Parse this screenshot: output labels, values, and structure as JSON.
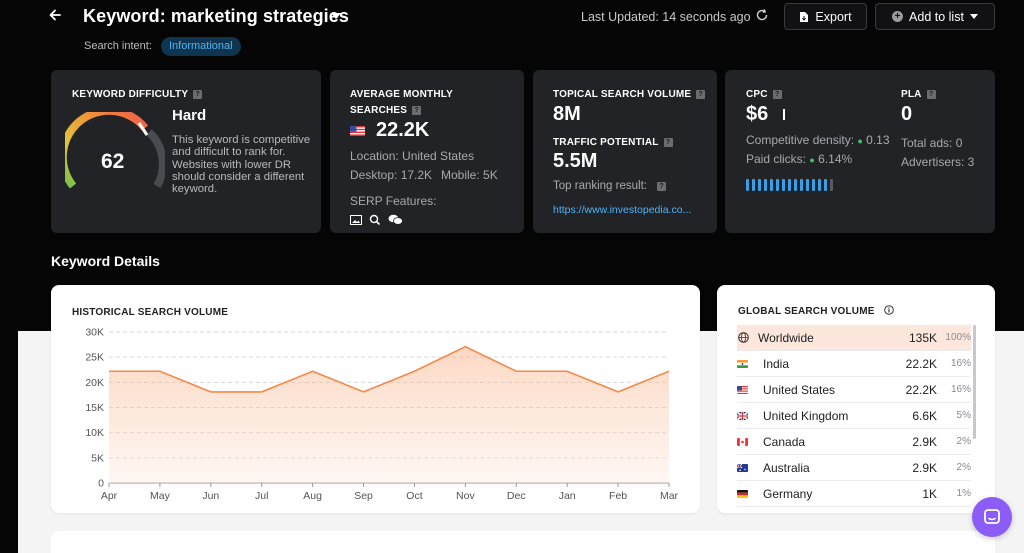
{
  "header": {
    "title": "Keyword: marketing strategies",
    "last_updated": "Last Updated: 14 seconds ago",
    "export_label": "Export",
    "add_to_list_label": "Add to list",
    "intent_label": "Search intent:",
    "intent_value": "Informational"
  },
  "keyword_difficulty": {
    "label": "KEYWORD DIFFICULTY",
    "value": 62,
    "rating": "Hard",
    "description": "This keyword is competitive and difficult to rank for. Websites with lower DR should consider a different keyword."
  },
  "monthly_searches": {
    "label_line1": "AVERAGE MONTHLY",
    "label_line2": "SEARCHES",
    "value": "22.2K",
    "location": "Location: United States",
    "desktop": "Desktop: 17.2K",
    "mobile": "Mobile: 5K",
    "serp_features_label": "SERP Features:"
  },
  "topical": {
    "label": "TOPICAL SEARCH VOLUME",
    "value": "8M",
    "traffic_label": "TRAFFIC POTENTIAL",
    "traffic_value": "5.5M",
    "top_result_label": "Top ranking result:",
    "top_result_url": "https://www.investopedia.co..."
  },
  "cpc": {
    "label": "CPC",
    "value": "$6",
    "density_label": "Competitive density:",
    "density_value": "0.13",
    "paid_label": "Paid clicks:",
    "paid_value": "6.14%",
    "density_level": 0.9
  },
  "pla": {
    "label": "PLA",
    "value": "0",
    "total_ads": "Total ads: 0",
    "advertisers": "Advertisers: 3"
  },
  "section_title": "Keyword Details",
  "historical": {
    "title": "HISTORICAL SEARCH VOLUME"
  },
  "chart_data": {
    "type": "area",
    "categories": [
      "Apr",
      "May",
      "Jun",
      "Jul",
      "Aug",
      "Sep",
      "Oct",
      "Nov",
      "Dec",
      "Jan",
      "Feb",
      "Mar"
    ],
    "values": [
      22200,
      22200,
      18100,
      18100,
      22200,
      18100,
      22200,
      27100,
      22200,
      22200,
      18100,
      22200
    ],
    "yticks": [
      "0",
      "5K",
      "10K",
      "15K",
      "20K",
      "25K",
      "30K"
    ],
    "ylim": [
      0,
      30000
    ],
    "color": "#f5894a",
    "grid": true
  },
  "global_volume": {
    "title": "GLOBAL SEARCH VOLUME",
    "rows": [
      {
        "name": "Worldwide",
        "volume": "135K",
        "pct": "100%",
        "icon": "globe-icon"
      },
      {
        "name": "India",
        "volume": "22.2K",
        "pct": "16%",
        "icon": "flag-india"
      },
      {
        "name": "United States",
        "volume": "22.2K",
        "pct": "16%",
        "icon": "flag-us"
      },
      {
        "name": "United Kingdom",
        "volume": "6.6K",
        "pct": "5%",
        "icon": "flag-uk"
      },
      {
        "name": "Canada",
        "volume": "2.9K",
        "pct": "2%",
        "icon": "flag-canada"
      },
      {
        "name": "Australia",
        "volume": "2.9K",
        "pct": "2%",
        "icon": "flag-australia"
      },
      {
        "name": "Germany",
        "volume": "1K",
        "pct": "1%",
        "icon": "flag-germany"
      }
    ]
  }
}
